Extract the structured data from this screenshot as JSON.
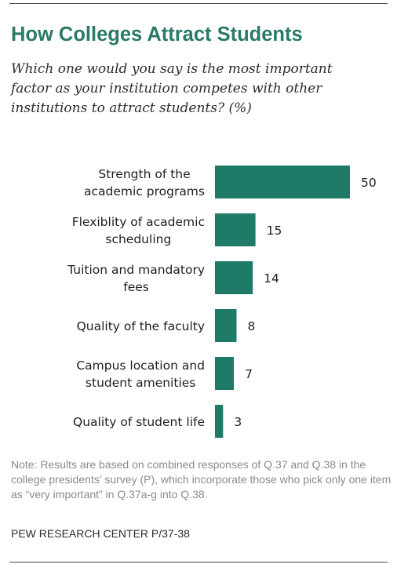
{
  "header": {
    "title": "How Colleges Attract Students",
    "subtitle": "Which one would you say is the most important factor as your institution competes with other institutions to attract students? (%)"
  },
  "chart_data": {
    "type": "bar",
    "orientation": "horizontal",
    "categories": [
      [
        "Strength of the",
        "academic programs"
      ],
      [
        "Flexiblity of academic",
        "scheduling"
      ],
      [
        "Tuition and mandatory",
        "fees"
      ],
      [
        "Quality of the faculty"
      ],
      [
        "Campus location and",
        "student amenities"
      ],
      [
        "Quality of student life"
      ]
    ],
    "values": [
      50,
      15,
      14,
      8,
      7,
      3
    ],
    "value_labels": [
      "50",
      "15",
      "14",
      "8",
      "7",
      "3"
    ],
    "bar_color": "#1f7a68",
    "xlim": [
      0,
      50
    ],
    "grid": false,
    "legend": "none"
  },
  "footer": {
    "note": "Note: Results are based on combined responses of Q.37 and Q.38 in the college presidents’ survey (P), which incorporate those who pick only one item as “very important” in Q.37a-g into Q.38.",
    "source": "PEW RESEARCH CENTER P/37-38"
  }
}
